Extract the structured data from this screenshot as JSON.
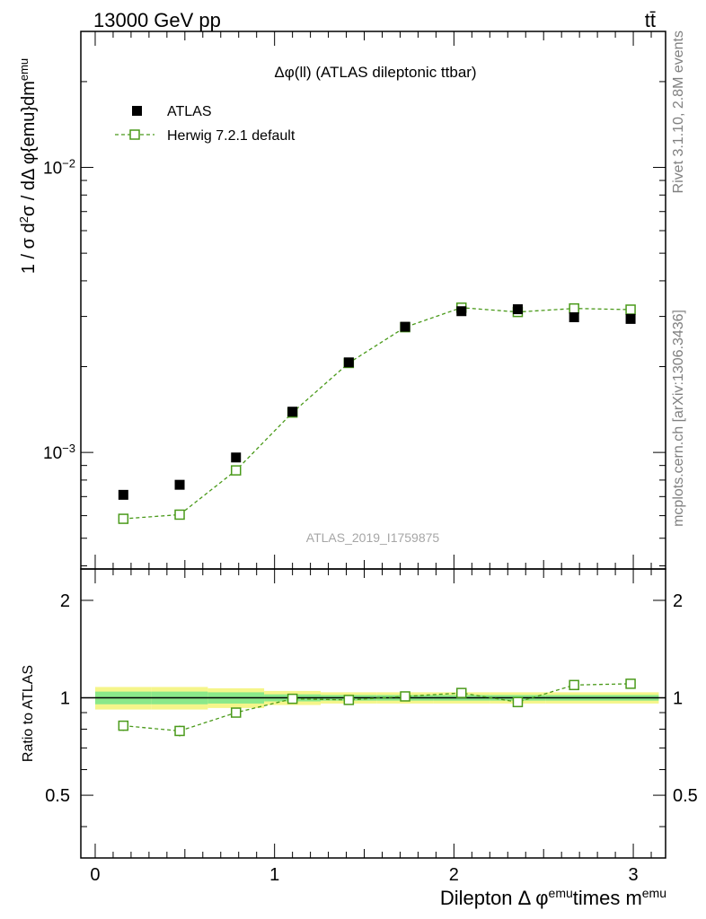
{
  "header": {
    "left": "13000 GeV pp",
    "right": "tt̄"
  },
  "side_labels": {
    "rivet": "Rivet 3.1.10,  2.8M events",
    "mcplots": "mcplots.cern.ch [arXiv:1306.3436]"
  },
  "analysis_id": "ATLAS_2019_I1759875",
  "colors": {
    "data": "#000000",
    "mc": "#4a9a1a",
    "band_inner": "#8ae88a",
    "band_outer": "#f5f58a"
  },
  "chart_data": [
    {
      "type": "scatter",
      "panel": "main",
      "title": "Δφ(ll) (ATLAS dileptonic ttbar)",
      "ylabel": "1 / σ  d²σ / dΔ φ{emu}dm^emu",
      "yscale": "log",
      "ylim": [
        0.00039,
        0.03
      ],
      "yticks": [
        {
          "value": 0.001,
          "base": "10",
          "exp": "−3"
        },
        {
          "value": 0.01,
          "base": "10",
          "exp": "−2"
        }
      ],
      "xlim": [
        -0.08,
        3.18
      ],
      "legend": {
        "position": "top-left",
        "entries": [
          "ATLAS",
          "Herwig 7.2.1 default"
        ]
      },
      "series": [
        {
          "name": "ATLAS",
          "x": [
            0.157,
            0.471,
            0.785,
            1.1,
            1.414,
            1.728,
            2.042,
            2.356,
            2.67,
            2.985
          ],
          "y": [
            0.00071,
            0.00077,
            0.00096,
            0.00139,
            0.00207,
            0.00276,
            0.00313,
            0.00318,
            0.00298,
            0.00294
          ]
        },
        {
          "name": "Herwig 7.2.1 default",
          "x": [
            0.157,
            0.471,
            0.785,
            1.1,
            1.414,
            1.728,
            2.042,
            2.356,
            2.67,
            2.985
          ],
          "y": [
            0.000585,
            0.000605,
            0.000865,
            0.00138,
            0.00206,
            0.00275,
            0.00322,
            0.00311,
            0.0032,
            0.00317
          ],
          "yerr": [
            2e-05,
            2e-05,
            2.5e-05,
            3e-05,
            3e-05,
            3e-05,
            3e-05,
            3e-05,
            3e-05,
            3e-05
          ]
        }
      ]
    },
    {
      "type": "line",
      "panel": "ratio",
      "ylabel": "Ratio to ATLAS",
      "xlabel": "Dilepton Δ φ^emu times m^emu",
      "ylim": [
        0.32,
        2.5
      ],
      "yticks": [
        0.5,
        1,
        2
      ],
      "ytick_labels": [
        "0.5",
        "1",
        "2"
      ],
      "xticks": [
        0,
        1,
        2,
        3
      ],
      "xtick_labels": [
        "0",
        "1",
        "2",
        "3"
      ],
      "xlim": [
        -0.08,
        3.18
      ],
      "bands": {
        "x_edges": [
          0.0,
          0.314,
          0.628,
          0.942,
          1.257,
          1.571,
          1.885,
          2.199,
          2.513,
          2.827,
          3.142
        ],
        "inner_halfwidth": [
          0.045,
          0.045,
          0.04,
          0.025,
          0.02,
          0.02,
          0.02,
          0.02,
          0.02,
          0.02
        ],
        "outer_halfwidth": [
          0.08,
          0.08,
          0.07,
          0.05,
          0.04,
          0.04,
          0.04,
          0.04,
          0.04,
          0.04
        ]
      },
      "series": [
        {
          "name": "Herwig 7.2.1 default",
          "x": [
            0.157,
            0.471,
            0.785,
            1.1,
            1.414,
            1.728,
            2.042,
            2.356,
            2.67,
            2.985
          ],
          "y": [
            0.82,
            0.79,
            0.9,
            0.993,
            0.985,
            1.01,
            1.035,
            0.97,
            1.095,
            1.105
          ],
          "yerr": [
            0.03,
            0.03,
            0.025,
            0.015,
            0.012,
            0.012,
            0.012,
            0.012,
            0.012,
            0.012
          ]
        }
      ]
    }
  ]
}
